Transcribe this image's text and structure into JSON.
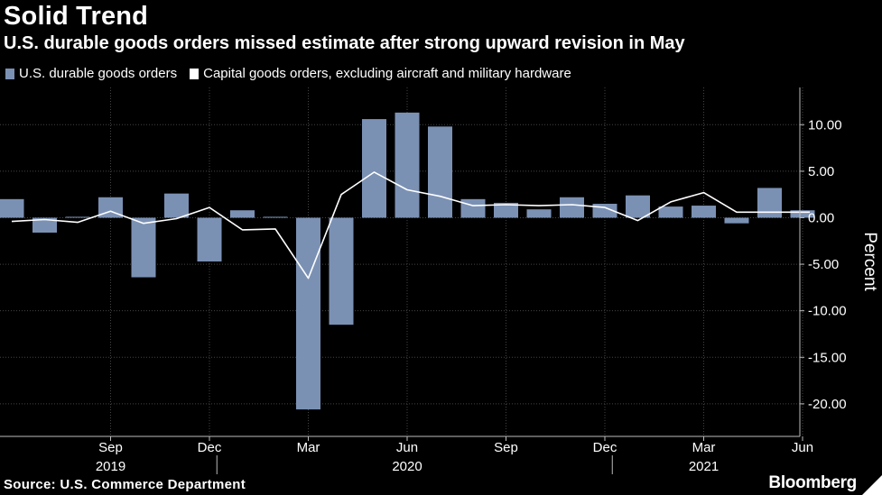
{
  "header": {
    "title": "Solid Trend",
    "subtitle": "U.S. durable goods orders missed estimate after strong upward revision in May"
  },
  "legend": {
    "items": [
      {
        "label": "U.S. durable goods orders",
        "color": "#7b91b4"
      },
      {
        "label": "Capital goods orders, excluding aircraft and military hardware",
        "color": "#ffffff"
      }
    ]
  },
  "chart_data": {
    "type": "bar",
    "title": "Solid Trend",
    "subtitle": "U.S. durable goods orders missed estimate after strong upward revision in May",
    "ylabel": "Percent",
    "ylim": [
      -23.5,
      14
    ],
    "yticks": [
      10,
      5,
      0,
      -5,
      -10,
      -15,
      -20
    ],
    "ytick_labels": [
      "10.00",
      "5.00",
      "0.00",
      "-5.00",
      "-10.00",
      "-15.00",
      "-20.00"
    ],
    "categories": [
      "Jun 2019",
      "Jul 2019",
      "Aug 2019",
      "Sep 2019",
      "Oct 2019",
      "Nov 2019",
      "Dec 2019",
      "Jan 2020",
      "Feb 2020",
      "Mar 2020",
      "Apr 2020",
      "May 2020",
      "Jun 2020",
      "Jul 2020",
      "Aug 2020",
      "Sep 2020",
      "Oct 2020",
      "Nov 2020",
      "Dec 2020",
      "Jan 2021",
      "Feb 2021",
      "Mar 2021",
      "Apr 2021",
      "May 2021",
      "Jun 2021"
    ],
    "series": [
      {
        "name": "U.S. durable goods orders",
        "kind": "bar",
        "values": [
          2.0,
          -1.6,
          0.1,
          2.2,
          -6.4,
          2.6,
          -4.7,
          0.8,
          0.1,
          -20.6,
          -11.5,
          10.6,
          11.3,
          9.8,
          2.0,
          1.6,
          0.9,
          2.2,
          1.5,
          2.4,
          1.2,
          1.3,
          -0.6,
          3.2,
          0.8
        ]
      },
      {
        "name": "Capital goods orders, excluding aircraft and military hardware",
        "kind": "line",
        "values": [
          -0.4,
          -0.2,
          -0.5,
          0.7,
          -0.6,
          -0.1,
          1.1,
          -1.3,
          -1.2,
          -6.5,
          2.5,
          4.9,
          3.0,
          2.3,
          1.3,
          1.4,
          1.3,
          1.4,
          1.1,
          -0.3,
          1.7,
          2.7,
          0.6,
          0.6,
          0.6
        ]
      }
    ],
    "xtick_labels": [
      {
        "label": "Sep",
        "index": 3
      },
      {
        "label": "Dec",
        "index": 6
      },
      {
        "label": "Mar",
        "index": 9
      },
      {
        "label": "Jun",
        "index": 12
      },
      {
        "label": "Sep",
        "index": 15
      },
      {
        "label": "Dec",
        "index": 18
      },
      {
        "label": "Mar",
        "index": 21
      },
      {
        "label": "Jun",
        "index": 24
      }
    ],
    "year_labels": [
      {
        "label": "2019",
        "index": 3
      },
      {
        "label": "2020",
        "index": 12
      },
      {
        "label": "2021",
        "index": 21
      }
    ],
    "year_dividers": [
      6.5,
      18.5
    ],
    "grid": true,
    "legend_position": "top-left"
  },
  "footer": {
    "source": "Source: U.S. Commerce Department",
    "logo": "Bloomberg"
  },
  "colors": {
    "background": "#000000",
    "bar": "#7b91b4",
    "line": "#ffffff",
    "grid": "#444444"
  }
}
